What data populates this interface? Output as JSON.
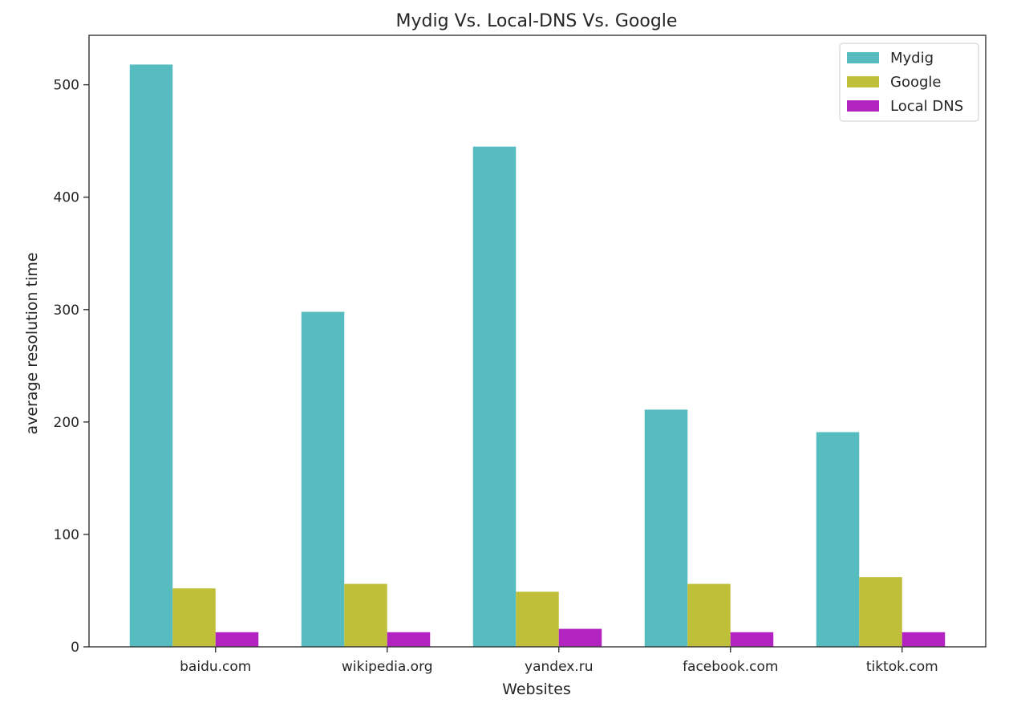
{
  "chart_data": {
    "type": "bar",
    "title": "Mydig Vs. Local-DNS Vs. Google",
    "xlabel": "Websites",
    "ylabel": "average resolution time",
    "categories": [
      "baidu.com",
      "wikipedia.org",
      "yandex.ru",
      "facebook.com",
      "tiktok.com"
    ],
    "series": [
      {
        "name": "Mydig",
        "color": "#56bcbf",
        "values": [
          518,
          298,
          445,
          211,
          191
        ]
      },
      {
        "name": "Google",
        "color": "#c0bf3a",
        "values": [
          52,
          56,
          49,
          56,
          62
        ]
      },
      {
        "name": "Local DNS",
        "color": "#b124bf",
        "values": [
          13,
          13,
          16,
          13,
          13
        ]
      }
    ],
    "ylim": [
      0,
      544
    ],
    "yticks": [
      0,
      100,
      200,
      300,
      400,
      500
    ],
    "grid": false,
    "legend_position": "top-right"
  }
}
